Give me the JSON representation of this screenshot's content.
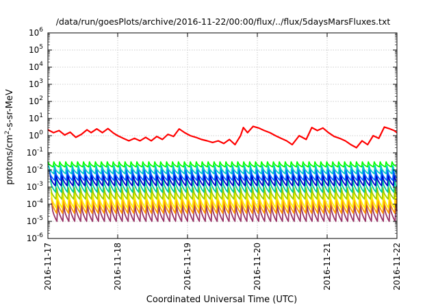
{
  "chart_data": {
    "type": "line",
    "title": "/data/run/goesPlots/archive/2016-11-22/00:00/flux/../flux/5daysMarsFluxes.txt",
    "xlabel": "Coordinated Universal Time (UTC)",
    "ylabel": {
      "prefix": "protons/cm",
      "sup": "2",
      "suffix": "-s-sr-MeV"
    },
    "yscale": "log",
    "ylim": [
      1e-06,
      1000000.0
    ],
    "xlim": [
      "2016-11-17",
      "2016-11-22"
    ],
    "grid": true,
    "x_ticks": [
      "2016-11-17",
      "2016-11-18",
      "2016-11-19",
      "2016-11-20",
      "2016-11-21",
      "2016-11-22"
    ],
    "y_ticks": [
      {
        "base": "10",
        "exp": "-6"
      },
      {
        "base": "10",
        "exp": "-5"
      },
      {
        "base": "10",
        "exp": "-4"
      },
      {
        "base": "10",
        "exp": "-3"
      },
      {
        "base": "10",
        "exp": "-2"
      },
      {
        "base": "10",
        "exp": "-1"
      },
      {
        "base": "10",
        "exp": "0"
      },
      {
        "base": "10",
        "exp": "1"
      },
      {
        "base": "10",
        "exp": "2"
      },
      {
        "base": "10",
        "exp": "3"
      },
      {
        "base": "10",
        "exp": "4"
      },
      {
        "base": "10",
        "exp": "5"
      },
      {
        "base": "10",
        "exp": "6"
      }
    ],
    "series": [
      {
        "color": "#ff0000",
        "x": [
          0,
          0.08,
          0.16,
          0.24,
          0.32,
          0.4,
          0.48,
          0.56,
          0.62,
          0.7,
          0.78,
          0.86,
          0.94,
          1.0,
          1.08,
          1.16,
          1.24,
          1.32,
          1.4,
          1.48,
          1.56,
          1.64,
          1.72,
          1.8,
          1.88,
          1.96,
          2.04,
          2.12,
          2.2,
          2.28,
          2.36,
          2.44,
          2.52,
          2.6,
          2.68,
          2.76,
          2.8,
          2.86,
          2.94,
          3.02,
          3.1,
          3.18,
          3.26,
          3.34,
          3.42,
          3.5,
          3.6,
          3.7,
          3.78,
          3.86,
          3.94,
          4.02,
          4.1,
          4.18,
          4.26,
          4.34,
          4.42,
          4.5,
          4.58,
          4.66,
          4.74,
          4.82,
          4.9,
          4.96,
          5.0
        ],
        "y": [
          2.2,
          1.5,
          2.0,
          1.1,
          1.6,
          0.8,
          1.2,
          2.2,
          1.5,
          2.5,
          1.5,
          2.6,
          1.4,
          1.0,
          0.7,
          0.5,
          0.7,
          0.5,
          0.8,
          0.5,
          0.9,
          0.6,
          1.2,
          0.9,
          2.5,
          1.5,
          1.0,
          0.8,
          0.6,
          0.5,
          0.4,
          0.5,
          0.35,
          0.6,
          0.3,
          1.0,
          3.0,
          1.5,
          3.5,
          2.8,
          2.0,
          1.5,
          1.0,
          0.7,
          0.5,
          0.3,
          1.0,
          0.6,
          3.0,
          2.0,
          2.8,
          1.5,
          0.9,
          0.7,
          0.5,
          0.3,
          0.2,
          0.5,
          0.3,
          1.0,
          0.7,
          3.2,
          2.5,
          2.0,
          1.5
        ]
      },
      {
        "color": "#00ff00",
        "period": 0.085,
        "phase": 0.0,
        "low": 0.015,
        "high": 0.03
      },
      {
        "color": "#00c8c8",
        "period": 0.085,
        "phase": 0.01,
        "low": 0.006,
        "high": 0.018
      },
      {
        "color": "#0066ff",
        "period": 0.085,
        "phase": 0.02,
        "low": 0.0025,
        "high": 0.01
      },
      {
        "color": "#0000cc",
        "period": 0.085,
        "phase": 0.03,
        "low": 0.0012,
        "high": 0.006
      },
      {
        "color": "#00cc99",
        "period": 0.085,
        "phase": 0.035,
        "low": 0.0005,
        "high": 0.003
      },
      {
        "color": "#99cc00",
        "period": 0.085,
        "phase": 0.04,
        "low": 0.0002,
        "high": 0.0009
      },
      {
        "color": "#ffee00",
        "period": 0.085,
        "phase": 0.045,
        "low": 6e-05,
        "high": 0.0005
      },
      {
        "color": "#ff9900",
        "period": 0.085,
        "phase": 0.05,
        "low": 3e-05,
        "high": 0.00025
      },
      {
        "color": "#993366",
        "period": 0.085,
        "phase": 0.055,
        "low": 1e-05,
        "high": 0.00012
      }
    ]
  }
}
